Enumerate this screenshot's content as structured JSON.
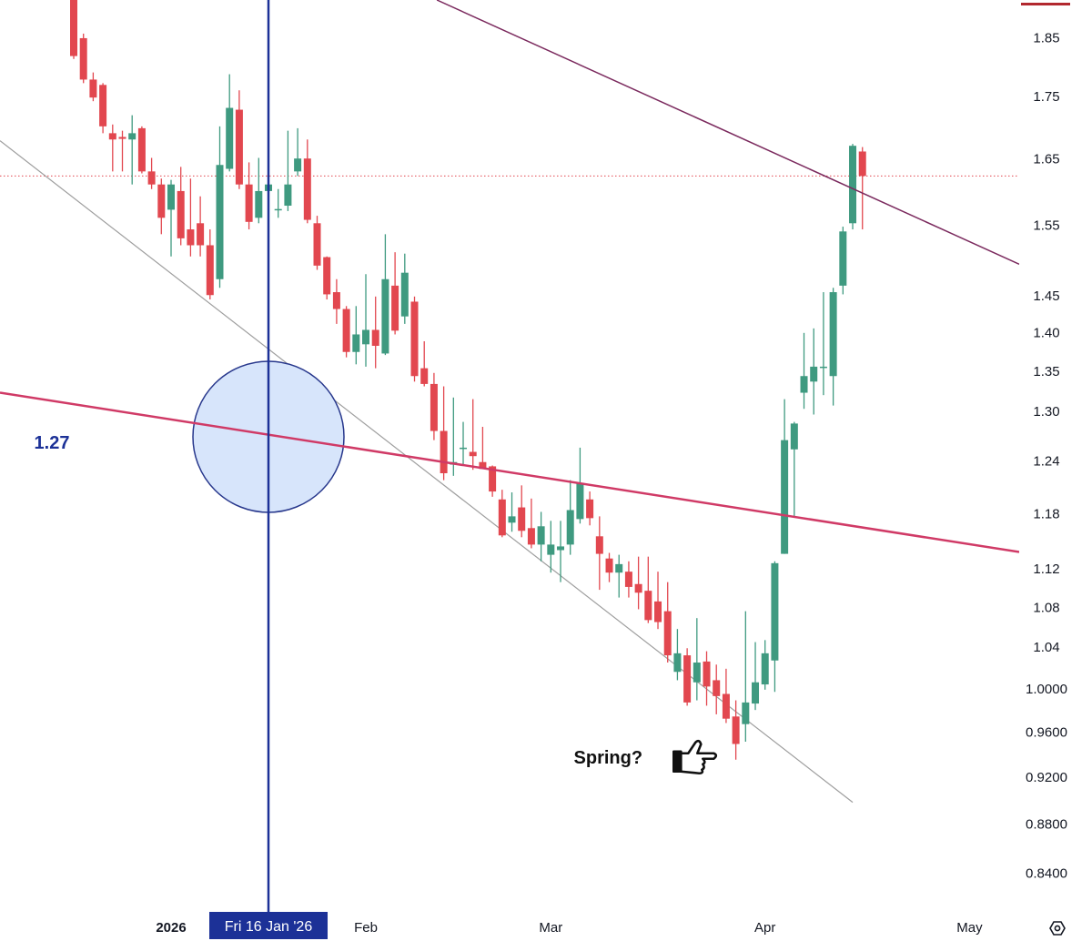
{
  "chart_data": {
    "type": "candlestick",
    "open": [
      1.919,
      1.851,
      1.78,
      1.771,
      1.692,
      1.686,
      1.682,
      1.7,
      1.632,
      1.612,
      1.574,
      1.602,
      1.545,
      1.554,
      1.522,
      1.474,
      1.636,
      1.73,
      1.612,
      1.562,
      1.602,
      1.574,
      1.58,
      1.632,
      1.652,
      1.554,
      1.505,
      1.456,
      1.433,
      1.376,
      1.386,
      1.405,
      1.374,
      1.465,
      1.423,
      1.443,
      1.355,
      1.335,
      1.277,
      1.237,
      1.256,
      1.252,
      1.24,
      1.235,
      1.197,
      1.171,
      1.188,
      1.165,
      1.147,
      1.136,
      1.141,
      1.147,
      1.175,
      1.197,
      1.156,
      1.132,
      1.117,
      1.118,
      1.105,
      1.098,
      1.087,
      1.077,
      1.017,
      1.033,
      1.007,
      1.027,
      1.009,
      0.996,
      0.975,
      0.968,
      0.987,
      1.005,
      1.028,
      1.137,
      1.255,
      1.324,
      1.338,
      1.356,
      1.345,
      1.465,
      1.554,
      1.663
    ],
    "high": [
      1.919,
      1.859,
      1.792,
      1.774,
      1.706,
      1.696,
      1.721,
      1.703,
      1.653,
      1.621,
      1.619,
      1.639,
      1.621,
      1.594,
      1.545,
      1.703,
      1.789,
      1.762,
      1.646,
      1.653,
      1.639,
      1.605,
      1.696,
      1.7,
      1.682,
      1.565,
      1.506,
      1.474,
      1.437,
      1.437,
      1.481,
      1.45,
      1.538,
      1.512,
      1.51,
      1.45,
      1.39,
      1.349,
      1.332,
      1.318,
      1.288,
      1.316,
      1.282,
      1.236,
      1.208,
      1.205,
      1.213,
      1.198,
      1.183,
      1.173,
      1.173,
      1.219,
      1.257,
      1.206,
      1.178,
      1.138,
      1.136,
      1.129,
      1.134,
      1.134,
      1.118,
      1.107,
      1.059,
      1.04,
      1.07,
      1.037,
      1.024,
      1.02,
      0.99,
      1.077,
      1.046,
      1.048,
      1.129,
      1.316,
      1.288,
      1.401,
      1.407,
      1.456,
      1.462,
      1.549,
      1.675,
      1.67
    ],
    "low": [
      1.815,
      1.774,
      1.744,
      1.692,
      1.632,
      1.632,
      1.612,
      1.629,
      1.605,
      1.538,
      1.506,
      1.522,
      1.506,
      1.506,
      1.446,
      1.462,
      1.632,
      1.605,
      1.545,
      1.554,
      1.594,
      1.562,
      1.572,
      1.625,
      1.554,
      1.487,
      1.446,
      1.413,
      1.369,
      1.36,
      1.357,
      1.355,
      1.372,
      1.399,
      1.413,
      1.338,
      1.332,
      1.266,
      1.219,
      1.224,
      1.237,
      1.231,
      1.232,
      1.2,
      1.155,
      1.161,
      1.155,
      1.143,
      1.129,
      1.117,
      1.107,
      1.136,
      1.17,
      1.168,
      1.099,
      1.107,
      1.091,
      1.091,
      1.079,
      1.065,
      1.059,
      1.026,
      1.009,
      0.985,
      0.99,
      0.985,
      0.977,
      0.969,
      0.936,
      0.952,
      0.981,
      1.0,
      0.998,
      1.137,
      1.178,
      1.304,
      1.297,
      1.321,
      1.308,
      1.453,
      1.545,
      1.545
    ],
    "close": [
      1.82,
      1.78,
      1.75,
      1.703,
      1.682,
      1.683,
      1.692,
      1.632,
      1.612,
      1.562,
      1.612,
      1.532,
      1.522,
      1.522,
      1.452,
      1.642,
      1.733,
      1.612,
      1.556,
      1.602,
      1.612,
      1.575,
      1.612,
      1.652,
      1.559,
      1.493,
      1.453,
      1.433,
      1.376,
      1.399,
      1.405,
      1.384,
      1.474,
      1.404,
      1.483,
      1.345,
      1.335,
      1.277,
      1.227,
      1.24,
      1.257,
      1.247,
      1.232,
      1.206,
      1.157,
      1.178,
      1.162,
      1.147,
      1.167,
      1.147,
      1.145,
      1.185,
      1.216,
      1.176,
      1.137,
      1.117,
      1.126,
      1.102,
      1.096,
      1.068,
      1.066,
      1.033,
      1.035,
      0.988,
      1.026,
      1.003,
      0.994,
      0.973,
      0.95,
      0.988,
      1.007,
      1.035,
      1.127,
      1.266,
      1.286,
      1.345,
      1.357,
      1.357,
      1.456,
      1.542,
      1.672,
      1.625
    ],
    "up_color": "#3f9a80",
    "down_color": "#e2474f",
    "yscale": "log",
    "ylim": [
      0.812,
      1.919
    ],
    "yticks": [
      1.85,
      1.75,
      1.65,
      1.55,
      1.45,
      {
        "value": 1.4,
        "label": "1.40"
      },
      1.35,
      {
        "value": 1.3,
        "label": "1.30"
      },
      1.24,
      1.18,
      1.12,
      1.08,
      1.04,
      {
        "value": 1.0,
        "label": "1.0000"
      },
      {
        "value": 0.96,
        "label": "0.9600"
      },
      {
        "value": 0.92,
        "label": "0.9200"
      },
      {
        "value": 0.88,
        "label": "0.8800"
      },
      {
        "value": 0.84,
        "label": "0.8400"
      }
    ],
    "xlim": [
      -7.57,
      97.1
    ],
    "xticks": [
      {
        "value": 10,
        "label": "2026"
      },
      {
        "value": 30,
        "label": "Feb"
      },
      {
        "value": 49,
        "label": "Mar"
      },
      {
        "value": 71,
        "label": "Apr"
      },
      {
        "value": 92,
        "label": "May"
      }
    ],
    "crosshair": {
      "x": {
        "value": 20,
        "label": "Fri 16 Jan '26"
      },
      "y": 1.27
    },
    "trendlines": [
      {
        "color": "#9e9e9e",
        "width": 1.2,
        "points": [
          [
            -7.57,
            1.68
          ],
          [
            80,
            0.899
          ]
        ]
      },
      {
        "color": "#7b2a5e",
        "width": 1.5,
        "points": [
          [
            37.3,
            1.919
          ],
          [
            97.1,
            1.495
          ]
        ]
      },
      {
        "color": "#d03a66",
        "width": 2.5,
        "points": [
          [
            -7.57,
            1.324
          ],
          [
            97.1,
            1.139
          ]
        ]
      }
    ],
    "annotation": {
      "text": "Spring?",
      "x": 59,
      "y": 0.932
    }
  }
}
